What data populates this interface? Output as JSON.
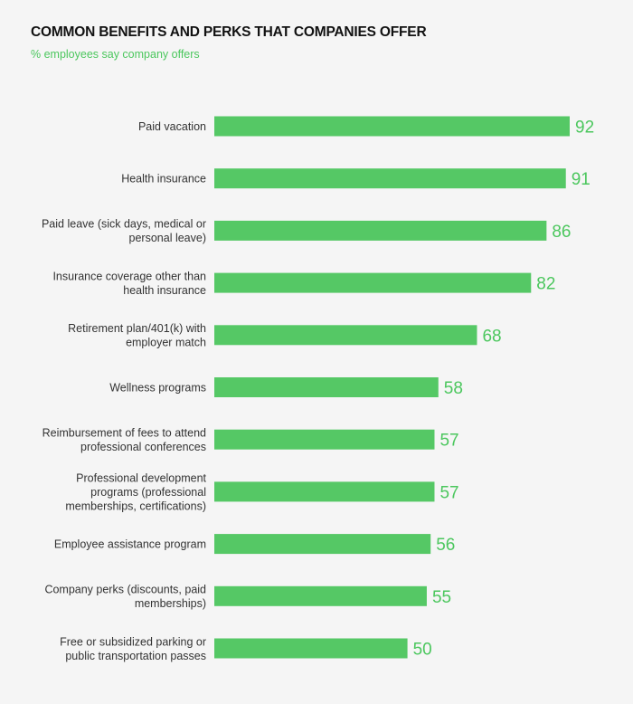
{
  "chart_data": {
    "type": "bar",
    "orientation": "horizontal",
    "title": "COMMON BENEFITS AND PERKS THAT COMPANIES OFFER",
    "subtitle": "% employees say company offers",
    "categories": [
      [
        "Paid vacation"
      ],
      [
        "Health insurance"
      ],
      [
        "Paid leave (sick days, medical or",
        "personal leave)"
      ],
      [
        "Insurance coverage other than",
        "health insurance"
      ],
      [
        "Retirement plan/401(k) with",
        "employer match"
      ],
      [
        "Wellness programs"
      ],
      [
        "Reimbursement of fees to attend",
        "professional conferences"
      ],
      [
        "Professional development",
        "programs (professional",
        "memberships, certifications)"
      ],
      [
        "Employee assistance program"
      ],
      [
        "Company perks (discounts, paid",
        "memberships)"
      ],
      [
        "Free or subsidized parking or",
        "public transportation passes"
      ]
    ],
    "values": [
      92,
      91,
      86,
      82,
      68,
      58,
      57,
      57,
      56,
      55,
      50
    ],
    "xlim": [
      0,
      92
    ],
    "grid": false,
    "bar_color": "#55c865",
    "value_label_color": "#4cc75e"
  }
}
